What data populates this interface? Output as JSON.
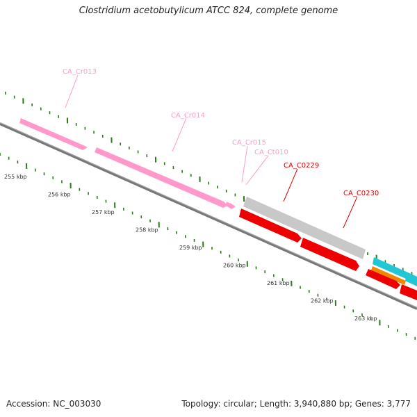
{
  "title": "Clostridium acetobutylicum ATCC 824, complete genome",
  "footer": {
    "accession": "Accession: NC_003030",
    "summary": "Topology: circular; Length: 3,940,880 bp; Genes: 3,777"
  },
  "ticks": [
    {
      "label": "255 kbp"
    },
    {
      "label": "256 kbp"
    },
    {
      "label": "257 kbp"
    },
    {
      "label": "258 kbp"
    },
    {
      "label": "259 kbp"
    },
    {
      "label": "260 kbp"
    },
    {
      "label": "261 kbp"
    },
    {
      "label": "262 kbp"
    },
    {
      "label": "263 kbp"
    }
  ],
  "genes": [
    {
      "label": "CA_Cr013",
      "color": "#ff99cc"
    },
    {
      "label": "CA_Cr014",
      "color": "#ff99cc"
    },
    {
      "label": "CA_Cr015",
      "color": "#ff99cc"
    },
    {
      "label": "CA_Ct010",
      "color": "#ff99cc"
    },
    {
      "label": "CA_C0229",
      "color": "#dd0000"
    },
    {
      "label": "CA_C0230",
      "color": "#dd0000"
    }
  ],
  "colors": {
    "backbone": "#777777",
    "tick_green": "#2a7a1a",
    "rna_pink": "#ff99cc",
    "cds_red": "#ee0000",
    "cds_grey": "#c8c8c8",
    "cds_cyan": "#22c7d6",
    "cds_orange": "#ee8800"
  }
}
